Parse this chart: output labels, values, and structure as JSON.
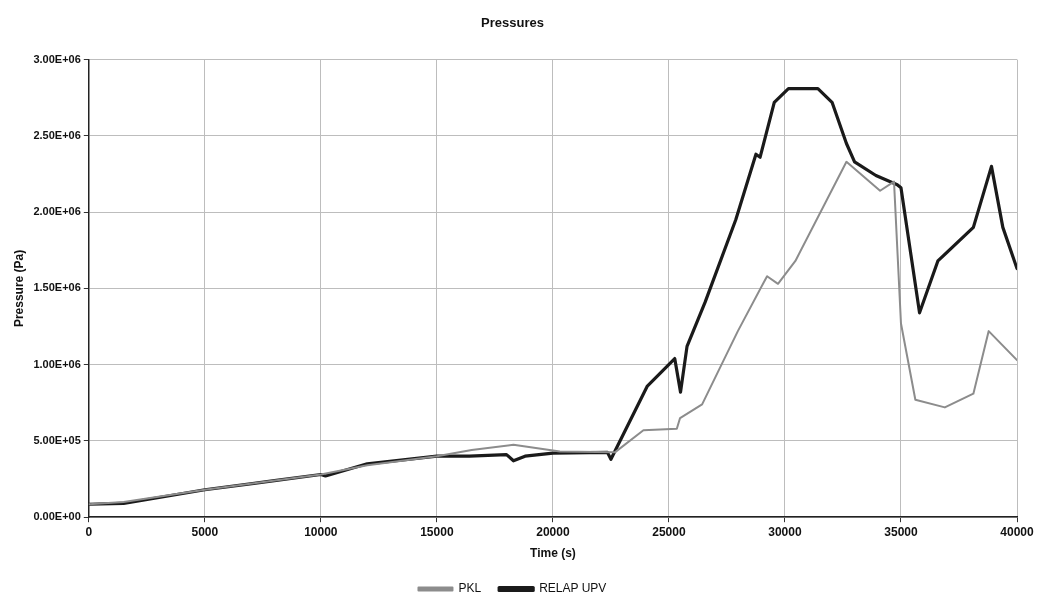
{
  "chart_data": {
    "type": "line",
    "title": "Pressures",
    "xlabel": "Time (s)",
    "ylabel": "Pressure (Pa)",
    "xlim": [
      0,
      40000
    ],
    "xticks": [
      0,
      5000,
      10000,
      15000,
      20000,
      25000,
      30000,
      35000,
      40000
    ],
    "ylim": [
      0,
      3000000
    ],
    "yticks": [
      {
        "value": 0,
        "label": "0.00E+00"
      },
      {
        "value": 500000,
        "label": "5.00E+05"
      },
      {
        "value": 1000000,
        "label": "1.00E+06"
      },
      {
        "value": 1500000,
        "label": "1.50E+06"
      },
      {
        "value": 2000000,
        "label": "2.00E+06"
      },
      {
        "value": 2500000,
        "label": "2.50E+06"
      },
      {
        "value": 3000000,
        "label": "3.00E+06"
      }
    ],
    "grid": true,
    "legend": "bottom",
    "marker": "none",
    "line_style": "solid",
    "series": [
      {
        "name": "PKL",
        "color": "#8c8c8c",
        "x": [
          0,
          1500,
          5000,
          10000,
          12000,
          15000,
          16500,
          18300,
          20300,
          22670,
          23900,
          25340,
          25480,
          26430,
          27970,
          29230,
          29700,
          30450,
          32650,
          34100,
          34700,
          35000,
          35620,
          36890,
          38120,
          38780,
          40000
        ],
        "values": [
          85000,
          100000,
          180000,
          280000,
          340000,
          400000,
          440000,
          475000,
          430000,
          425000,
          570000,
          580000,
          650000,
          740000,
          1220000,
          1580000,
          1530000,
          1680000,
          2330000,
          2140000,
          2200000,
          1270000,
          770000,
          720000,
          810000,
          1220000,
          1030000
        ]
      },
      {
        "name": "RELAP UPV",
        "color": "#1a1a1a",
        "x": [
          0,
          1500,
          5000,
          8000,
          10000,
          10200,
          12000,
          15000,
          16400,
          18000,
          18300,
          18800,
          20000,
          22350,
          22500,
          24070,
          25250,
          25500,
          25780,
          26560,
          27880,
          28750,
          28930,
          29540,
          30150,
          31420,
          32030,
          32650,
          33000,
          33920,
          34840,
          35000,
          35800,
          36590,
          38120,
          38900,
          39390,
          40000
        ],
        "values": [
          85000,
          90000,
          180000,
          240000,
          280000,
          270000,
          350000,
          400000,
          400000,
          410000,
          370000,
          400000,
          420000,
          425000,
          380000,
          860000,
          1040000,
          820000,
          1120000,
          1410000,
          1950000,
          2380000,
          2360000,
          2720000,
          2810000,
          2810000,
          2720000,
          2450000,
          2330000,
          2240000,
          2180000,
          2160000,
          1340000,
          1680000,
          1900000,
          2300000,
          1900000,
          1630000
        ]
      }
    ]
  }
}
